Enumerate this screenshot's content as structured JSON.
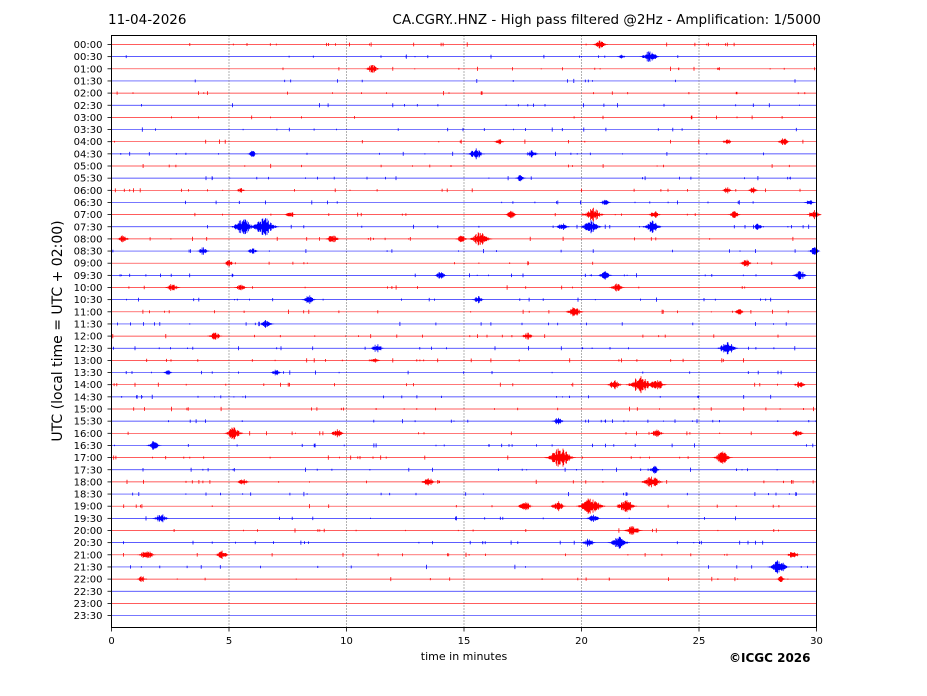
{
  "header": {
    "date": "11-04-2026",
    "title": "CA.CGRY..HNZ - High pass filtered @2Hz - Amplification: 1/5000"
  },
  "footer": {
    "copyright": "©ICGC 2026"
  },
  "chart_data": {
    "type": "line",
    "title": "CA.CGRY..HNZ - High pass filtered @2Hz - Amplification: 1/5000",
    "xlabel": "time in minutes",
    "ylabel": "UTC (local time = UTC + 02:00)",
    "xlim": [
      0,
      30
    ],
    "x_ticks": [
      0,
      5,
      10,
      15,
      20,
      25,
      30
    ],
    "row_labels": [
      "00:00",
      "00:30",
      "01:00",
      "01:30",
      "02:00",
      "02:30",
      "03:00",
      "03:30",
      "04:00",
      "04:30",
      "05:00",
      "05:30",
      "06:00",
      "06:30",
      "07:00",
      "07:30",
      "08:00",
      "08:30",
      "09:00",
      "09:30",
      "10:00",
      "10:30",
      "11:00",
      "11:30",
      "12:00",
      "12:30",
      "13:00",
      "13:30",
      "14:00",
      "14:30",
      "15:00",
      "15:30",
      "16:00",
      "16:30",
      "17:00",
      "17:30",
      "18:00",
      "18:30",
      "19:00",
      "19:30",
      "20:00",
      "20:30",
      "21:00",
      "21:30",
      "22:00",
      "22:30",
      "23:00",
      "23:30"
    ],
    "row_colors": [
      "#ff0000",
      "#0000ff"
    ],
    "grid": "vertical dotted at every 5 minutes",
    "bursts": [
      {
        "row": 0,
        "t": 20.8,
        "amp": 0.5
      },
      {
        "row": 1,
        "t": 21.7,
        "amp": 0.2
      },
      {
        "row": 1,
        "t": 22.9,
        "amp": 0.8
      },
      {
        "row": 2,
        "t": 11.1,
        "amp": 0.5
      },
      {
        "row": 8,
        "t": 16.5,
        "amp": 0.3
      },
      {
        "row": 8,
        "t": 26.2,
        "amp": 0.3
      },
      {
        "row": 8,
        "t": 28.6,
        "amp": 0.4
      },
      {
        "row": 9,
        "t": 6.0,
        "amp": 0.3
      },
      {
        "row": 9,
        "t": 15.5,
        "amp": 0.7
      },
      {
        "row": 9,
        "t": 17.9,
        "amp": 0.4
      },
      {
        "row": 11,
        "t": 17.4,
        "amp": 0.3
      },
      {
        "row": 12,
        "t": 5.5,
        "amp": 0.2
      },
      {
        "row": 12,
        "t": 26.2,
        "amp": 0.3
      },
      {
        "row": 12,
        "t": 27.3,
        "amp": 0.3
      },
      {
        "row": 13,
        "t": 21.0,
        "amp": 0.3
      },
      {
        "row": 13,
        "t": 29.7,
        "amp": 0.3
      },
      {
        "row": 14,
        "t": 7.6,
        "amp": 0.3
      },
      {
        "row": 14,
        "t": 17.0,
        "amp": 0.4
      },
      {
        "row": 14,
        "t": 20.5,
        "amp": 0.9
      },
      {
        "row": 14,
        "t": 23.1,
        "amp": 0.4
      },
      {
        "row": 14,
        "t": 26.5,
        "amp": 0.4
      },
      {
        "row": 14,
        "t": 29.9,
        "amp": 0.5
      },
      {
        "row": 15,
        "t": 5.6,
        "amp": 1.1
      },
      {
        "row": 15,
        "t": 6.5,
        "amp": 1.3
      },
      {
        "row": 15,
        "t": 19.2,
        "amp": 0.5
      },
      {
        "row": 15,
        "t": 20.4,
        "amp": 0.9
      },
      {
        "row": 15,
        "t": 23.0,
        "amp": 0.8
      },
      {
        "row": 15,
        "t": 27.5,
        "amp": 0.3
      },
      {
        "row": 16,
        "t": 0.5,
        "amp": 0.4
      },
      {
        "row": 16,
        "t": 9.4,
        "amp": 0.5
      },
      {
        "row": 16,
        "t": 14.9,
        "amp": 0.4
      },
      {
        "row": 16,
        "t": 15.7,
        "amp": 1.0
      },
      {
        "row": 17,
        "t": 3.9,
        "amp": 0.4
      },
      {
        "row": 17,
        "t": 6.0,
        "amp": 0.3
      },
      {
        "row": 17,
        "t": 29.9,
        "amp": 0.4
      },
      {
        "row": 18,
        "t": 5.0,
        "amp": 0.3
      },
      {
        "row": 18,
        "t": 27.0,
        "amp": 0.4
      },
      {
        "row": 19,
        "t": 14.0,
        "amp": 0.4
      },
      {
        "row": 19,
        "t": 21.0,
        "amp": 0.5
      },
      {
        "row": 19,
        "t": 29.3,
        "amp": 0.6
      },
      {
        "row": 20,
        "t": 2.6,
        "amp": 0.5
      },
      {
        "row": 20,
        "t": 5.5,
        "amp": 0.4
      },
      {
        "row": 20,
        "t": 21.5,
        "amp": 0.5
      },
      {
        "row": 21,
        "t": 8.4,
        "amp": 0.5
      },
      {
        "row": 21,
        "t": 15.6,
        "amp": 0.4
      },
      {
        "row": 22,
        "t": 19.7,
        "amp": 0.7
      },
      {
        "row": 22,
        "t": 26.7,
        "amp": 0.3
      },
      {
        "row": 23,
        "t": 6.6,
        "amp": 0.5
      },
      {
        "row": 24,
        "t": 4.4,
        "amp": 0.5
      },
      {
        "row": 24,
        "t": 17.7,
        "amp": 0.4
      },
      {
        "row": 25,
        "t": 11.3,
        "amp": 0.5
      },
      {
        "row": 25,
        "t": 26.2,
        "amp": 0.9
      },
      {
        "row": 26,
        "t": 11.2,
        "amp": 0.3
      },
      {
        "row": 27,
        "t": 2.4,
        "amp": 0.2
      },
      {
        "row": 27,
        "t": 7.0,
        "amp": 0.3
      },
      {
        "row": 28,
        "t": 21.4,
        "amp": 0.6
      },
      {
        "row": 28,
        "t": 22.5,
        "amp": 1.3
      },
      {
        "row": 28,
        "t": 23.2,
        "amp": 0.8
      },
      {
        "row": 28,
        "t": 29.3,
        "amp": 0.4
      },
      {
        "row": 31,
        "t": 19.0,
        "amp": 0.4
      },
      {
        "row": 32,
        "t": 5.2,
        "amp": 0.8
      },
      {
        "row": 32,
        "t": 9.6,
        "amp": 0.5
      },
      {
        "row": 32,
        "t": 23.2,
        "amp": 0.5
      },
      {
        "row": 32,
        "t": 29.2,
        "amp": 0.4
      },
      {
        "row": 33,
        "t": 1.8,
        "amp": 0.5
      },
      {
        "row": 34,
        "t": 19.1,
        "amp": 1.4
      },
      {
        "row": 34,
        "t": 26.0,
        "amp": 0.8
      },
      {
        "row": 35,
        "t": 23.1,
        "amp": 0.4
      },
      {
        "row": 36,
        "t": 5.6,
        "amp": 0.4
      },
      {
        "row": 36,
        "t": 13.5,
        "amp": 0.5
      },
      {
        "row": 36,
        "t": 23.0,
        "amp": 0.9
      },
      {
        "row": 38,
        "t": 17.6,
        "amp": 0.6
      },
      {
        "row": 38,
        "t": 19.0,
        "amp": 0.6
      },
      {
        "row": 38,
        "t": 20.4,
        "amp": 1.3
      },
      {
        "row": 38,
        "t": 21.9,
        "amp": 0.9
      },
      {
        "row": 39,
        "t": 2.1,
        "amp": 0.6
      },
      {
        "row": 39,
        "t": 20.5,
        "amp": 0.5
      },
      {
        "row": 40,
        "t": 22.2,
        "amp": 0.7
      },
      {
        "row": 41,
        "t": 20.3,
        "amp": 0.5
      },
      {
        "row": 41,
        "t": 21.6,
        "amp": 0.9
      },
      {
        "row": 42,
        "t": 1.5,
        "amp": 0.7
      },
      {
        "row": 42,
        "t": 4.7,
        "amp": 0.5
      },
      {
        "row": 42,
        "t": 29.0,
        "amp": 0.5
      },
      {
        "row": 43,
        "t": 28.4,
        "amp": 0.9
      },
      {
        "row": 44,
        "t": 1.3,
        "amp": 0.3
      },
      {
        "row": 44,
        "t": 28.5,
        "amp": 0.3
      }
    ]
  }
}
